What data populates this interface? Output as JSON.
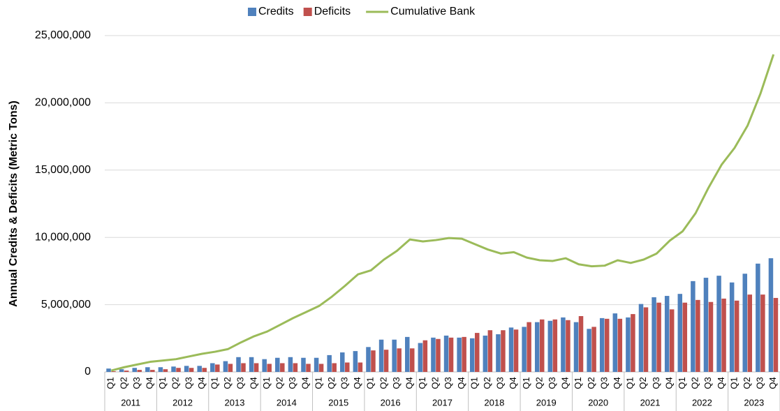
{
  "chart_data": {
    "type": "bar_line",
    "y_axis_label": "Annual Credits & Deficits (Metric Tons)",
    "categories": [
      "Q1",
      "Q2",
      "Q3",
      "Q4",
      "Q1",
      "Q2",
      "Q3",
      "Q4",
      "Q1",
      "Q2",
      "Q3",
      "Q4",
      "Q1",
      "Q2",
      "Q3",
      "Q4",
      "Q1",
      "Q2",
      "Q3",
      "Q4",
      "Q1",
      "Q2",
      "Q3",
      "Q4",
      "Q1",
      "Q2",
      "Q3",
      "Q4",
      "Q1",
      "Q2",
      "Q3",
      "Q4",
      "Q1",
      "Q2",
      "Q3",
      "Q4",
      "Q1",
      "Q2",
      "Q3",
      "Q4",
      "Q1",
      "Q2",
      "Q3",
      "Q4",
      "Q1",
      "Q2",
      "Q3",
      "Q4",
      "Q1",
      "Q2",
      "Q3",
      "Q4"
    ],
    "years": [
      "2011",
      "2012",
      "2013",
      "2014",
      "2015",
      "2016",
      "2017",
      "2018",
      "2019",
      "2020",
      "2021",
      "2022",
      "2023"
    ],
    "series": [
      {
        "name": "Credits",
        "kind": "bar",
        "color": "#4f81bd",
        "values": [
          250000,
          200000,
          300000,
          350000,
          350000,
          400000,
          450000,
          450000,
          650000,
          800000,
          1100000,
          1100000,
          950000,
          1050000,
          1100000,
          1050000,
          1050000,
          1250000,
          1450000,
          1550000,
          1850000,
          2400000,
          2400000,
          2600000,
          2150000,
          2550000,
          2700000,
          2550000,
          2500000,
          2700000,
          2800000,
          3300000,
          3350000,
          3700000,
          3800000,
          4050000,
          3700000,
          3200000,
          4000000,
          4350000,
          4050000,
          5050000,
          5550000,
          5650000,
          5800000,
          6750000,
          7000000,
          7150000,
          6650000,
          7300000,
          8050000,
          8450000
        ]
      },
      {
        "name": "Deficits",
        "kind": "bar",
        "color": "#c0504d",
        "values": [
          50000,
          100000,
          150000,
          150000,
          200000,
          300000,
          300000,
          300000,
          550000,
          600000,
          650000,
          650000,
          600000,
          650000,
          650000,
          600000,
          600000,
          650000,
          700000,
          700000,
          1600000,
          1650000,
          1750000,
          1750000,
          2350000,
          2450000,
          2550000,
          2600000,
          2900000,
          3100000,
          3100000,
          3150000,
          3700000,
          3900000,
          3900000,
          3850000,
          4150000,
          3350000,
          3950000,
          3950000,
          4300000,
          4800000,
          5150000,
          4650000,
          5150000,
          5350000,
          5200000,
          5450000,
          5300000,
          5750000,
          5750000,
          5500000
        ]
      },
      {
        "name": "Cumulative Bank",
        "kind": "line",
        "color": "#9bbb59",
        "values": [
          100000,
          350000,
          550000,
          750000,
          850000,
          950000,
          1150000,
          1350000,
          1500000,
          1700000,
          2200000,
          2650000,
          3000000,
          3500000,
          4000000,
          4450000,
          4900000,
          5600000,
          6400000,
          7250000,
          7550000,
          8350000,
          9000000,
          9850000,
          9700000,
          9800000,
          9950000,
          9900000,
          9500000,
          9100000,
          8800000,
          8900000,
          8500000,
          8300000,
          8250000,
          8450000,
          8000000,
          7850000,
          7900000,
          8300000,
          8100000,
          8350000,
          8800000,
          9750000,
          10450000,
          11800000,
          13700000,
          15400000,
          16650000,
          18300000,
          20700000,
          23600000
        ]
      }
    ],
    "ylim": [
      0,
      25000000
    ],
    "yticks": [
      0,
      {
        "value": 5000000,
        "label": "5,000,000"
      },
      {
        "value": 10000000,
        "label": "10,000,000"
      },
      {
        "value": 15000000,
        "label": "15,000,000"
      },
      {
        "value": 20000000,
        "label": "20,000,000"
      },
      {
        "value": 25000000,
        "label": "25,000,000"
      }
    ],
    "grid": true,
    "legend": "top"
  }
}
